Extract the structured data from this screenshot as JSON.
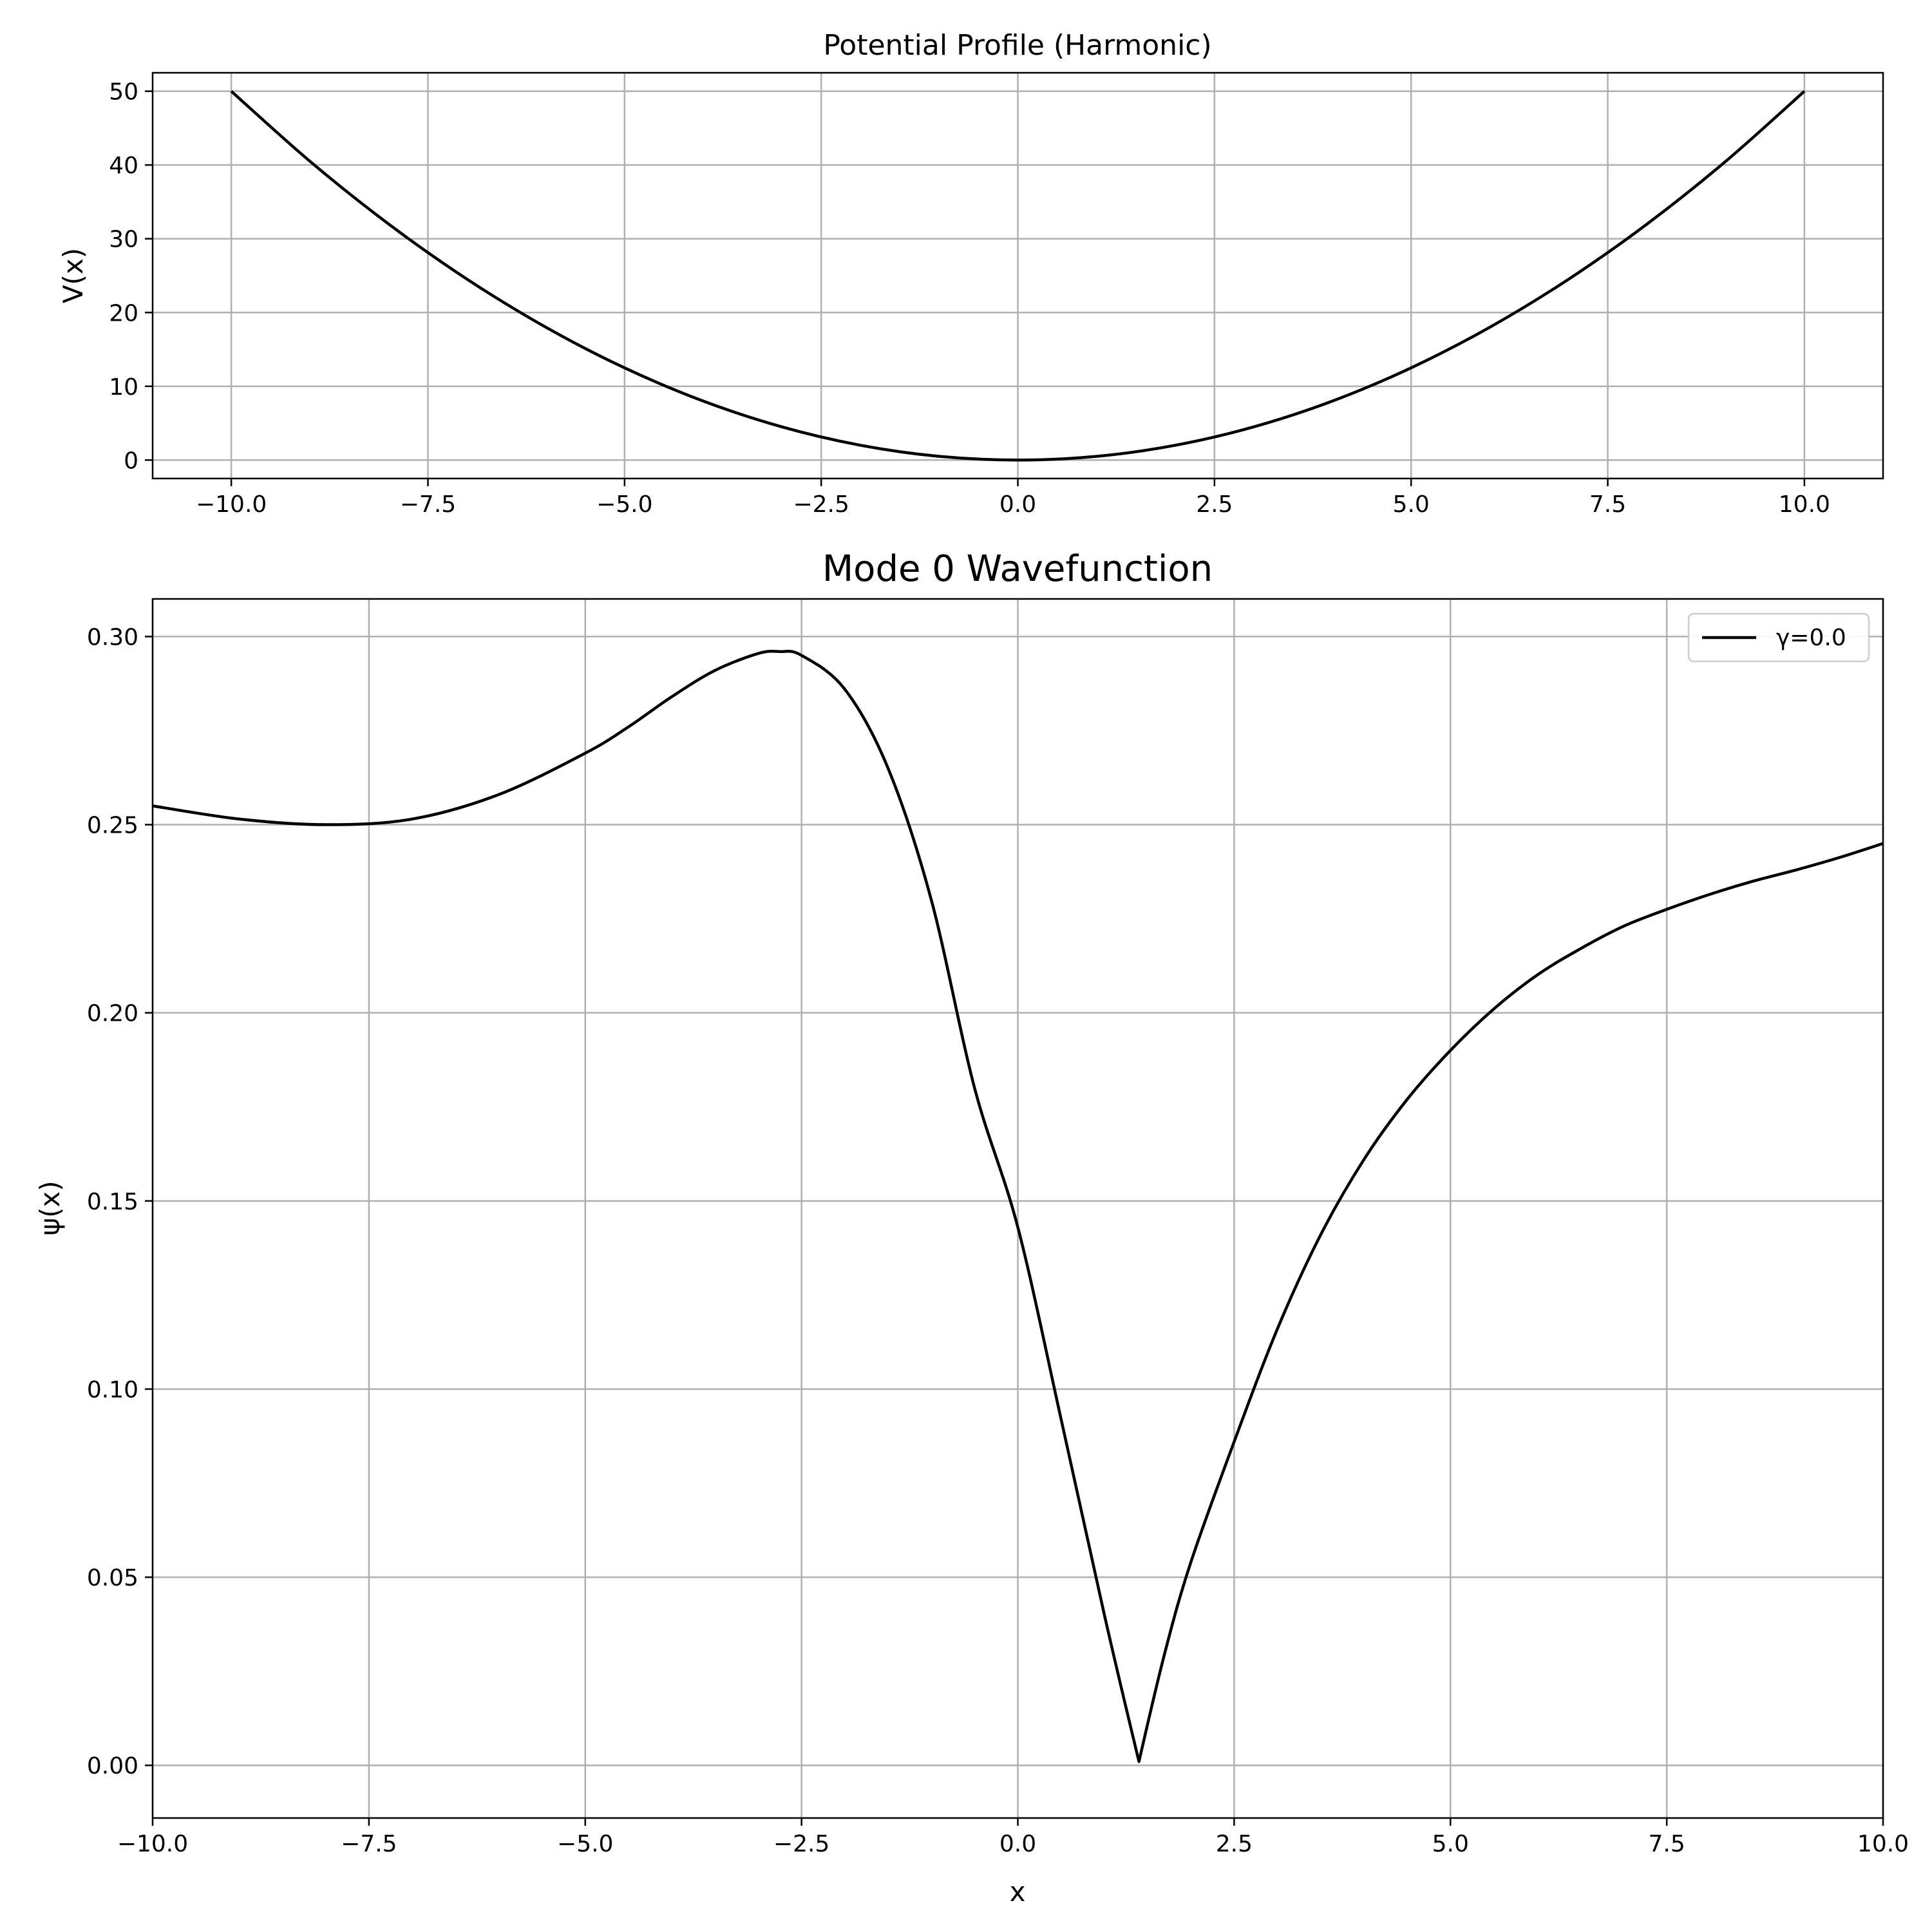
{
  "chart_data": [
    {
      "type": "line",
      "title": "Potential Profile (Harmonic)",
      "xlabel": "",
      "ylabel": "V(x)",
      "xlim": [
        -11,
        11
      ],
      "ylim": [
        -2.5,
        52.5
      ],
      "xticks": [
        -10.0,
        -7.5,
        -5.0,
        -2.5,
        0.0,
        2.5,
        5.0,
        7.5,
        10.0
      ],
      "xtick_labels": [
        "−10.0",
        "−7.5",
        "−5.0",
        "−2.5",
        "0.0",
        "2.5",
        "5.0",
        "7.5",
        "10.0"
      ],
      "yticks": [
        0,
        10,
        20,
        30,
        40,
        50
      ],
      "ytick_labels": [
        "0",
        "10",
        "20",
        "30",
        "40",
        "50"
      ],
      "grid": true,
      "series": [
        {
          "color": "#000000",
          "x": [
            -10,
            -9,
            -8,
            -7,
            -6,
            -5,
            -4,
            -3,
            -2,
            -1,
            0,
            1,
            2,
            3,
            4,
            5,
            6,
            7,
            8,
            9,
            10
          ],
          "y": [
            50,
            40.5,
            32,
            24.5,
            18,
            12.5,
            8,
            4.5,
            2,
            0.5,
            0,
            0.5,
            2,
            4.5,
            8,
            12.5,
            18,
            24.5,
            32,
            40.5,
            50
          ]
        }
      ]
    },
    {
      "type": "line",
      "title": "Mode 0 Wavefunction",
      "xlabel": "x",
      "ylabel": "ψ(x)",
      "xlim": [
        -10,
        10
      ],
      "ylim": [
        -0.014,
        0.31
      ],
      "xticks": [
        -10.0,
        -7.5,
        -5.0,
        -2.5,
        0.0,
        2.5,
        5.0,
        7.5,
        10.0
      ],
      "xtick_labels": [
        "−10.0",
        "−7.5",
        "−5.0",
        "−2.5",
        "0.0",
        "2.5",
        "5.0",
        "7.5",
        "10.0"
      ],
      "yticks": [
        0.0,
        0.05,
        0.1,
        0.15,
        0.2,
        0.25,
        0.3
      ],
      "ytick_labels": [
        "0.00",
        "0.05",
        "0.10",
        "0.15",
        "0.20",
        "0.25",
        "0.30"
      ],
      "grid": true,
      "legend_position": "upper right",
      "series": [
        {
          "name": "γ=0.0",
          "color": "#000000",
          "x": [
            -10,
            -9,
            -8,
            -7,
            -6,
            -5,
            -4.5,
            -4,
            -3.5,
            -3,
            -2.75,
            -2.5,
            -2,
            -1.5,
            -1,
            -0.5,
            0,
            0.5,
            1,
            1.4,
            1.7,
            2,
            2.5,
            3,
            3.5,
            4,
            4.5,
            5,
            5.5,
            6,
            6.5,
            7,
            7.5,
            8,
            8.5,
            9,
            9.5,
            10
          ],
          "y": [
            0.255,
            0.2515,
            0.25,
            0.2515,
            0.258,
            0.269,
            0.276,
            0.284,
            0.291,
            0.2955,
            0.296,
            0.295,
            0.286,
            0.265,
            0.23,
            0.18,
            0.143,
            0.092,
            0.04,
            0.001,
            0.03,
            0.054,
            0.086,
            0.116,
            0.141,
            0.161,
            0.177,
            0.19,
            0.201,
            0.21,
            0.217,
            0.223,
            0.2275,
            0.2315,
            0.235,
            0.238,
            0.2413,
            0.245
          ]
        }
      ]
    }
  ]
}
